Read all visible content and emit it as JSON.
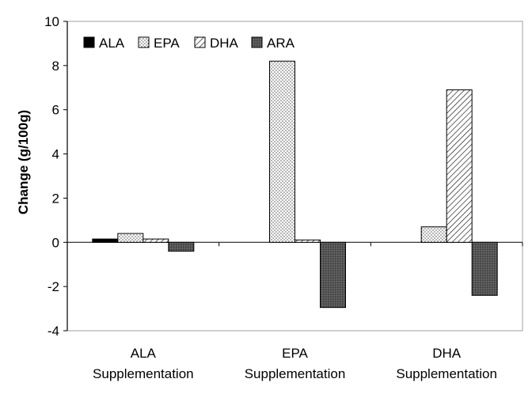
{
  "chart_data": {
    "type": "bar",
    "title": "",
    "xlabel": "",
    "ylabel": "Change (g/100g)",
    "ylim": [
      -4,
      10
    ],
    "yticks": [
      -4,
      -2,
      0,
      2,
      4,
      6,
      8,
      10
    ],
    "grid": false,
    "legend_position": "top-left",
    "categories": [
      [
        "ALA",
        "Supplementation"
      ],
      [
        "EPA",
        "Supplementation"
      ],
      [
        "DHA",
        "Supplementation"
      ]
    ],
    "series": [
      {
        "name": "ALA",
        "fill": "solid-black",
        "values": [
          0.15,
          0.0,
          0.0
        ]
      },
      {
        "name": "EPA",
        "fill": "dotted",
        "values": [
          0.4,
          8.2,
          0.7
        ]
      },
      {
        "name": "DHA",
        "fill": "diagonal-hatch",
        "values": [
          0.15,
          0.1,
          6.9
        ]
      },
      {
        "name": "ARA",
        "fill": "dark-gray",
        "values": [
          -0.4,
          -2.95,
          -2.4
        ]
      }
    ]
  }
}
